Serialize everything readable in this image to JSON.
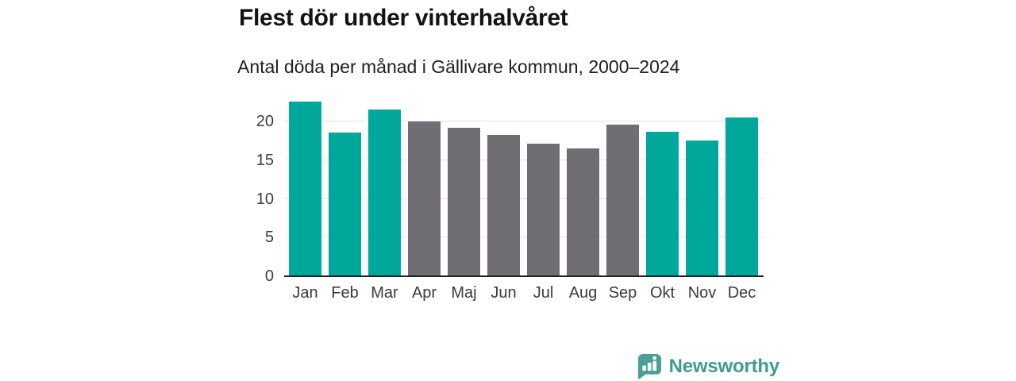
{
  "header": {
    "title": "Flest dör under vinterhalvåret",
    "subtitle": "Antal döda per månad i Gällivare kommun, 2000–2024"
  },
  "chart_data": {
    "type": "bar",
    "title": "Flest dör under vinterhalvåret",
    "subtitle": "Antal döda per månad i Gällivare kommun, 2000–2024",
    "categories": [
      "Jan",
      "Feb",
      "Mar",
      "Apr",
      "Maj",
      "Jun",
      "Jul",
      "Aug",
      "Sep",
      "Okt",
      "Nov",
      "Dec"
    ],
    "values": [
      22.5,
      18.5,
      21.5,
      19.9,
      19.1,
      18.2,
      17.0,
      16.4,
      19.5,
      18.6,
      17.5,
      20.4
    ],
    "bar_colors": [
      "#00a79b",
      "#00a79b",
      "#00a79b",
      "#706d73",
      "#706d73",
      "#706d73",
      "#706d73",
      "#706d73",
      "#706d73",
      "#00a79b",
      "#00a79b",
      "#00a79b"
    ],
    "xlabel": "",
    "ylabel": "",
    "yticks": [
      0,
      5,
      10,
      15,
      20
    ],
    "ylim": [
      0,
      23.3
    ],
    "grid": "horizontal",
    "legend": "none",
    "colors": {
      "highlight_winter_months": "#00a79b",
      "other_months": "#706d73",
      "gridline": "#e2e2e2",
      "axis_line": "#242424",
      "tick_label": "#3a3a3a"
    }
  },
  "footer": {
    "brand": "Newsworthy",
    "brand_color": "#3f9b93",
    "logo_icon": "bar-chart-speech-bubble",
    "logo_icon_color": "#4aa096"
  }
}
